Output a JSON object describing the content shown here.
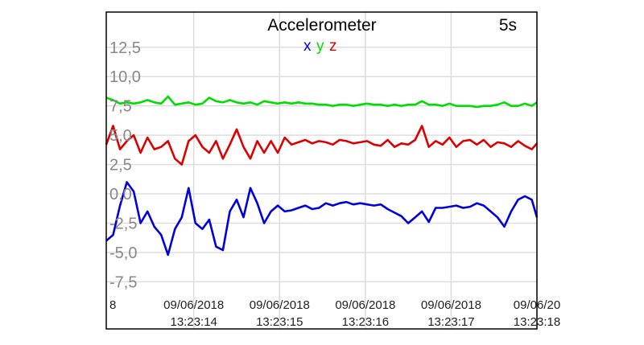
{
  "chart_data": {
    "type": "line",
    "title": "Accelerometer",
    "window_label": "5s",
    "legend": [
      {
        "label": "x",
        "color": "#0000dd"
      },
      {
        "label": "y",
        "color": "#00dd00"
      },
      {
        "label": "z",
        "color": "#dd0000"
      }
    ],
    "legend_position": "top-center",
    "grid": true,
    "ylim": [
      -8.5,
      15.5
    ],
    "y_ticks": [
      {
        "value": 12.5,
        "label": "12,5"
      },
      {
        "value": 10.0,
        "label": "10,0"
      },
      {
        "value": 7.5,
        "label": "7,5"
      },
      {
        "value": 5.0,
        "label": "5,0"
      },
      {
        "value": 2.5,
        "label": "2,5"
      },
      {
        "value": 0.0,
        "label": "0,0"
      },
      {
        "value": -2.5,
        "label": "-2,5"
      },
      {
        "value": -5.0,
        "label": "-5,0"
      },
      {
        "value": -7.5,
        "label": "-7,5"
      }
    ],
    "xlim": [
      12.98,
      18.0
    ],
    "x_ticks": [
      {
        "value": 13.0,
        "label_date": "8",
        "label_time": ""
      },
      {
        "value": 14.0,
        "label_date": "09/06/2018",
        "label_time": "13:23:14"
      },
      {
        "value": 15.0,
        "label_date": "09/06/2018",
        "label_time": "13:23:15"
      },
      {
        "value": 16.0,
        "label_date": "09/06/2018",
        "label_time": "13:23:16"
      },
      {
        "value": 17.0,
        "label_date": "09/06/2018",
        "label_time": "13:23:17"
      },
      {
        "value": 18.0,
        "label_date": "09/06/20",
        "label_time": "13:23:18"
      }
    ],
    "x": [
      12.98,
      13.06,
      13.14,
      13.22,
      13.3,
      13.38,
      13.46,
      13.54,
      13.62,
      13.7,
      13.78,
      13.86,
      13.94,
      14.02,
      14.1,
      14.18,
      14.26,
      14.34,
      14.42,
      14.5,
      14.58,
      14.66,
      14.74,
      14.82,
      14.9,
      14.98,
      15.06,
      15.14,
      15.22,
      15.3,
      15.38,
      15.46,
      15.54,
      15.62,
      15.7,
      15.78,
      15.86,
      15.94,
      16.02,
      16.1,
      16.18,
      16.26,
      16.34,
      16.42,
      16.5,
      16.58,
      16.66,
      16.74,
      16.82,
      16.9,
      16.98,
      17.06,
      17.14,
      17.22,
      17.3,
      17.38,
      17.46,
      17.54,
      17.62,
      17.7,
      17.78,
      17.86,
      17.94,
      18.0
    ],
    "series": [
      {
        "name": "x",
        "color": "#0000dd",
        "values": [
          -4.0,
          -3.5,
          -1.0,
          1.0,
          0.2,
          -2.5,
          -1.5,
          -2.8,
          -3.5,
          -5.2,
          -3.0,
          -2.0,
          0.5,
          -2.5,
          -3.0,
          -2.2,
          -4.5,
          -4.8,
          -1.5,
          -0.5,
          -2.0,
          0.5,
          -0.8,
          -2.5,
          -1.5,
          -1.0,
          -1.5,
          -1.4,
          -1.2,
          -1.0,
          -1.3,
          -1.2,
          -0.8,
          -1.0,
          -0.8,
          -0.7,
          -0.9,
          -0.8,
          -0.9,
          -1.0,
          -0.9,
          -1.3,
          -1.6,
          -1.9,
          -2.5,
          -2.0,
          -1.5,
          -2.4,
          -1.2,
          -1.2,
          -1.1,
          -1.0,
          -1.2,
          -1.1,
          -0.8,
          -1.0,
          -1.5,
          -2.0,
          -2.8,
          -1.5,
          -0.5,
          -0.2,
          -0.5,
          -2.0
        ]
      },
      {
        "name": "y",
        "color": "#00dd00",
        "values": [
          8.2,
          8.0,
          7.7,
          7.8,
          7.7,
          7.8,
          8.0,
          7.8,
          7.7,
          8.3,
          7.6,
          7.7,
          7.8,
          7.6,
          7.7,
          8.2,
          7.9,
          7.8,
          8.0,
          7.8,
          7.7,
          7.8,
          7.6,
          7.9,
          7.8,
          7.7,
          7.8,
          7.7,
          7.8,
          7.7,
          7.7,
          7.6,
          7.6,
          7.5,
          7.6,
          7.6,
          7.5,
          7.6,
          7.7,
          7.6,
          7.6,
          7.5,
          7.6,
          7.5,
          7.6,
          7.6,
          7.9,
          7.6,
          7.6,
          7.5,
          7.7,
          7.5,
          7.5,
          7.5,
          7.4,
          7.5,
          7.5,
          7.6,
          7.8,
          7.5,
          7.5,
          7.7,
          7.5,
          7.8
        ]
      },
      {
        "name": "z",
        "color": "#dd0000",
        "values": [
          4.2,
          5.8,
          3.8,
          4.5,
          5.0,
          3.5,
          4.8,
          3.8,
          4.0,
          4.5,
          3.0,
          2.5,
          4.5,
          5.0,
          4.0,
          3.5,
          4.5,
          3.0,
          4.2,
          5.5,
          4.0,
          3.0,
          4.5,
          3.5,
          4.5,
          3.5,
          4.8,
          4.2,
          4.4,
          4.6,
          4.3,
          4.5,
          4.4,
          4.2,
          4.6,
          4.5,
          4.3,
          4.4,
          4.5,
          4.2,
          4.1,
          4.6,
          4.0,
          4.3,
          4.2,
          4.6,
          5.8,
          4.0,
          4.5,
          4.2,
          4.8,
          4.0,
          4.5,
          4.6,
          4.2,
          4.6,
          4.0,
          4.4,
          4.3,
          4.0,
          4.5,
          4.1,
          3.8,
          4.3
        ]
      }
    ]
  }
}
